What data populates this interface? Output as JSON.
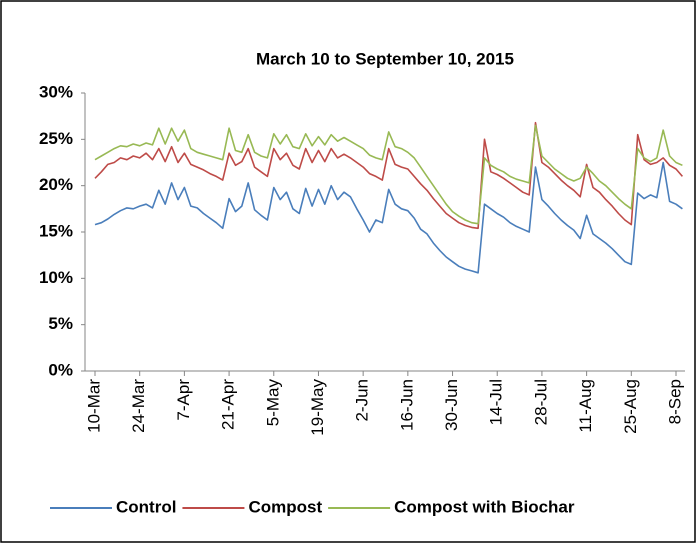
{
  "chart_data": {
    "type": "line",
    "title": "March 10 to September 10, 2015",
    "categories": [
      "10-Mar",
      null,
      null,
      null,
      null,
      null,
      null,
      "24-Mar",
      null,
      null,
      null,
      null,
      null,
      null,
      "7-Apr",
      null,
      null,
      null,
      null,
      null,
      null,
      "21-Apr",
      null,
      null,
      null,
      null,
      null,
      null,
      "5-May",
      null,
      null,
      null,
      null,
      null,
      null,
      "19-May",
      null,
      null,
      null,
      null,
      null,
      null,
      "2-Jun",
      null,
      null,
      null,
      null,
      null,
      null,
      "16-Jun",
      null,
      null,
      null,
      null,
      null,
      null,
      "30-Jun",
      null,
      null,
      null,
      null,
      null,
      null,
      "14-Jul",
      null,
      null,
      null,
      null,
      null,
      null,
      "28-Jul",
      null,
      null,
      null,
      null,
      null,
      null,
      "11-Aug",
      null,
      null,
      null,
      null,
      null,
      null,
      "25-Aug",
      null,
      null,
      null,
      null,
      null,
      null,
      "8-Sep",
      null
    ],
    "series": [
      {
        "name": "Control",
        "color": "#4a7ebb",
        "values": [
          15.8,
          16.0,
          16.4,
          16.9,
          17.3,
          17.6,
          17.5,
          17.8,
          18.0,
          17.6,
          19.5,
          18.0,
          20.3,
          18.5,
          19.8,
          17.8,
          17.6,
          17.0,
          16.5,
          16.0,
          15.4,
          18.6,
          17.2,
          17.8,
          20.3,
          17.4,
          16.8,
          16.3,
          19.8,
          18.5,
          19.3,
          17.5,
          17.0,
          19.7,
          17.8,
          19.6,
          18.0,
          20.0,
          18.5,
          19.3,
          18.8,
          17.5,
          16.3,
          15.0,
          16.3,
          16.0,
          19.6,
          18.0,
          17.5,
          17.3,
          16.5,
          15.3,
          14.8,
          13.8,
          13.0,
          12.3,
          11.8,
          11.3,
          11.0,
          10.8,
          10.6,
          18.0,
          17.5,
          17.0,
          16.6,
          16.0,
          15.6,
          15.3,
          15.0,
          22.0,
          18.5,
          17.8,
          17.0,
          16.3,
          15.7,
          15.2,
          14.3,
          16.8,
          14.8,
          14.3,
          13.8,
          13.2,
          12.5,
          11.8,
          11.5,
          19.2,
          18.6,
          19.0,
          18.7,
          22.5,
          18.3,
          18.0,
          17.5
        ]
      },
      {
        "name": "Compost",
        "color": "#be4b48",
        "values": [
          20.8,
          21.5,
          22.3,
          22.5,
          23.0,
          22.8,
          23.2,
          23.0,
          23.5,
          22.8,
          24.0,
          22.6,
          24.2,
          22.5,
          23.5,
          22.3,
          22.0,
          21.7,
          21.3,
          21.0,
          20.6,
          23.5,
          22.2,
          22.6,
          24.0,
          22.0,
          21.5,
          21.0,
          24.0,
          22.8,
          23.5,
          22.2,
          21.8,
          24.0,
          22.5,
          23.8,
          22.6,
          24.0,
          23.0,
          23.4,
          23.0,
          22.5,
          22.0,
          21.3,
          21.0,
          20.6,
          24.0,
          22.3,
          22.0,
          21.8,
          21.0,
          20.2,
          19.5,
          18.6,
          17.8,
          17.0,
          16.5,
          16.0,
          15.7,
          15.5,
          15.4,
          25.0,
          21.5,
          21.2,
          20.8,
          20.3,
          19.8,
          19.3,
          19.0,
          26.8,
          22.5,
          22.0,
          21.3,
          20.6,
          20.0,
          19.5,
          18.8,
          22.3,
          19.8,
          19.3,
          18.5,
          17.8,
          17.0,
          16.3,
          15.8,
          25.5,
          22.8,
          22.3,
          22.5,
          23.0,
          22.2,
          21.8,
          21.0
        ]
      },
      {
        "name": "Compost with Biochar",
        "color": "#98b954",
        "values": [
          22.8,
          23.2,
          23.6,
          24.0,
          24.3,
          24.2,
          24.5,
          24.3,
          24.6,
          24.4,
          26.2,
          24.5,
          26.2,
          24.8,
          26.0,
          24.0,
          23.6,
          23.4,
          23.2,
          23.0,
          22.8,
          26.2,
          23.8,
          23.6,
          25.5,
          23.6,
          23.2,
          23.0,
          25.6,
          24.5,
          25.5,
          24.2,
          24.0,
          25.6,
          24.3,
          25.3,
          24.4,
          25.5,
          24.8,
          25.2,
          24.8,
          24.4,
          24.0,
          23.3,
          23.0,
          22.8,
          25.8,
          24.2,
          24.0,
          23.6,
          23.0,
          22.0,
          21.0,
          20.0,
          19.0,
          18.0,
          17.2,
          16.7,
          16.3,
          16.0,
          15.9,
          23.0,
          22.2,
          21.8,
          21.5,
          21.0,
          20.7,
          20.5,
          20.3,
          26.5,
          23.2,
          22.5,
          21.8,
          21.3,
          20.8,
          20.5,
          20.8,
          22.0,
          21.3,
          20.5,
          20.0,
          19.3,
          18.6,
          18.0,
          17.5,
          24.0,
          23.0,
          22.6,
          23.0,
          26.0,
          23.2,
          22.5,
          22.2
        ]
      }
    ],
    "ylim": [
      0,
      30
    ],
    "yticks": [
      {
        "value": 0,
        "label": "0%"
      },
      {
        "value": 5,
        "label": "5%"
      },
      {
        "value": 10,
        "label": "10%"
      },
      {
        "value": 15,
        "label": "15%"
      },
      {
        "value": 20,
        "label": "20%"
      },
      {
        "value": 25,
        "label": "25%"
      },
      {
        "value": 30,
        "label": "30%"
      }
    ],
    "grid": false,
    "legend": "bottom"
  }
}
